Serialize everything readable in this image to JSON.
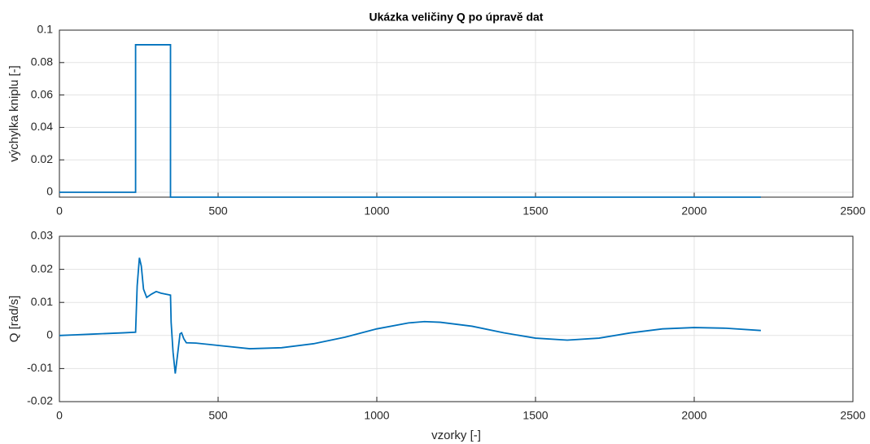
{
  "chart_data": [
    {
      "type": "line",
      "title": "Ukázka veličiny Q po úpravě dat",
      "y_label": "výchylka kniplu [-]",
      "x": [
        0,
        240,
        240,
        350,
        350,
        2210
      ],
      "series": [
        {
          "color": "#0072BD",
          "values": [
            0,
            0,
            0.091,
            0.091,
            -0.003,
            -0.003
          ]
        }
      ],
      "xlim": [
        0,
        2500
      ],
      "xticks": [
        0,
        500,
        1000,
        1500,
        2000,
        2500
      ],
      "ylim": [
        -0.003,
        0.1
      ],
      "yticks": [
        0,
        0.02,
        0.04,
        0.06,
        0.08,
        0.1
      ],
      "grid": true
    },
    {
      "type": "line",
      "x_label": "vzorky [-]",
      "y_label": "Q [rad/s]",
      "x": [
        0,
        50,
        100,
        200,
        240,
        245,
        252,
        258,
        265,
        275,
        290,
        305,
        320,
        350,
        352,
        358,
        365,
        372,
        380,
        385,
        392,
        400,
        430,
        500,
        600,
        700,
        800,
        900,
        1000,
        1100,
        1150,
        1200,
        1300,
        1400,
        1500,
        1600,
        1700,
        1800,
        1900,
        2000,
        2100,
        2210
      ],
      "series": [
        {
          "color": "#0072BD",
          "values": [
            0,
            0.0002,
            0.0004,
            0.0008,
            0.001,
            0.015,
            0.0235,
            0.021,
            0.014,
            0.0115,
            0.0125,
            0.0133,
            0.0128,
            0.0122,
            0.004,
            -0.005,
            -0.0115,
            -0.006,
            0.0005,
            0.0008,
            -0.001,
            -0.0022,
            -0.0023,
            -0.003,
            -0.004,
            -0.0037,
            -0.0025,
            -0.0005,
            0.002,
            0.0038,
            0.0042,
            0.004,
            0.0028,
            0.0008,
            -0.0008,
            -0.0014,
            -0.0008,
            0.0008,
            0.002,
            0.0024,
            0.0022,
            0.0015
          ]
        }
      ],
      "xlim": [
        0,
        2500
      ],
      "xticks": [
        0,
        500,
        1000,
        1500,
        2000,
        2500
      ],
      "ylim": [
        -0.02,
        0.03
      ],
      "yticks": [
        -0.02,
        -0.01,
        0,
        0.01,
        0.02,
        0.03
      ],
      "grid": true
    }
  ]
}
